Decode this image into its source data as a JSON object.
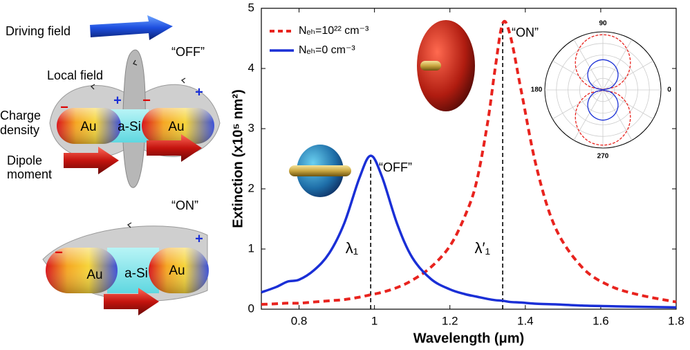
{
  "chart_data": [
    {
      "type": "line",
      "xlabel": "Wavelength (μm)",
      "ylabel": "Extinction (x10⁵ nm²)",
      "x": [
        0.7,
        0.74,
        0.77,
        0.8,
        0.84,
        0.88,
        0.92,
        0.96,
        0.99,
        1.02,
        1.06,
        1.1,
        1.15,
        1.2,
        1.24,
        1.27,
        1.3,
        1.32,
        1.34,
        1.36,
        1.39,
        1.43,
        1.48,
        1.55,
        1.62,
        1.7,
        1.8
      ],
      "series": [
        {
          "name": "Nₑₕ=10²² cm⁻³",
          "color": "#e8231e",
          "dash": true,
          "values": [
            0.08,
            0.09,
            0.1,
            0.1,
            0.12,
            0.14,
            0.16,
            0.2,
            0.24,
            0.28,
            0.36,
            0.48,
            0.7,
            1.05,
            1.55,
            2.1,
            3.1,
            4.0,
            4.75,
            4.55,
            3.6,
            2.35,
            1.35,
            0.7,
            0.4,
            0.24,
            0.12
          ]
        },
        {
          "name": "Nₑₕ=0 cm⁻³",
          "color": "#1a2fd6",
          "dash": false,
          "values": [
            0.28,
            0.37,
            0.46,
            0.49,
            0.65,
            0.93,
            1.43,
            2.18,
            2.55,
            2.2,
            1.42,
            0.86,
            0.5,
            0.33,
            0.25,
            0.21,
            0.17,
            0.15,
            0.14,
            0.12,
            0.11,
            0.09,
            0.08,
            0.06,
            0.05,
            0.04,
            0.03
          ]
        }
      ],
      "xlim": [
        0.7,
        1.8
      ],
      "xticks": [
        0.8,
        1,
        1.2,
        1.4,
        1.6,
        1.8
      ],
      "ylim": [
        0,
        5
      ],
      "yticks": [
        0,
        1,
        2,
        3,
        4,
        5
      ],
      "vlines": [
        {
          "x": 0.99,
          "y": 2.55,
          "label": "λ₁"
        },
        {
          "x": 1.34,
          "y": 4.75,
          "label": "λ′₁"
        }
      ],
      "annotations": [
        "“OFF”",
        "“ON”"
      ]
    },
    {
      "type": "polar",
      "theta": [
        0,
        15,
        30,
        45,
        60,
        75,
        90,
        105,
        120,
        135,
        150,
        165,
        180,
        195,
        210,
        225,
        240,
        255,
        270,
        285,
        300,
        315,
        330,
        345
      ],
      "thetaticks": [
        0,
        90,
        180,
        270
      ],
      "rlim": [
        0,
        1
      ],
      "series": [
        {
          "color": "#e8231e",
          "dash": true,
          "values": [
            0,
            0.25,
            0.48,
            0.67,
            0.82,
            0.92,
            0.95,
            0.92,
            0.82,
            0.67,
            0.48,
            0.25,
            0,
            0.25,
            0.48,
            0.67,
            0.82,
            0.92,
            0.95,
            0.92,
            0.82,
            0.67,
            0.48,
            0.25
          ]
        },
        {
          "color": "#1a2fd6",
          "dash": false,
          "values": [
            0,
            0.13,
            0.26,
            0.37,
            0.45,
            0.5,
            0.52,
            0.5,
            0.45,
            0.37,
            0.26,
            0.13,
            0,
            0.13,
            0.26,
            0.37,
            0.45,
            0.5,
            0.52,
            0.5,
            0.45,
            0.37,
            0.26,
            0.13
          ]
        }
      ]
    }
  ],
  "diagram": {
    "driving_field": "Driving field",
    "off_label": "“OFF”",
    "local_field": "Local field",
    "charge_label": [
      "Charge",
      "density"
    ],
    "dipole_label": [
      "Dipole",
      "moment"
    ],
    "top_rod": [
      "Au",
      "a-Si",
      "Au"
    ],
    "top_signs": [
      "−",
      "+",
      "−",
      "+"
    ],
    "on_label": "“ON”",
    "bottom_rod": [
      "Au",
      "a-Si",
      "Au"
    ],
    "bottom_signs": [
      "−",
      "+"
    ]
  }
}
